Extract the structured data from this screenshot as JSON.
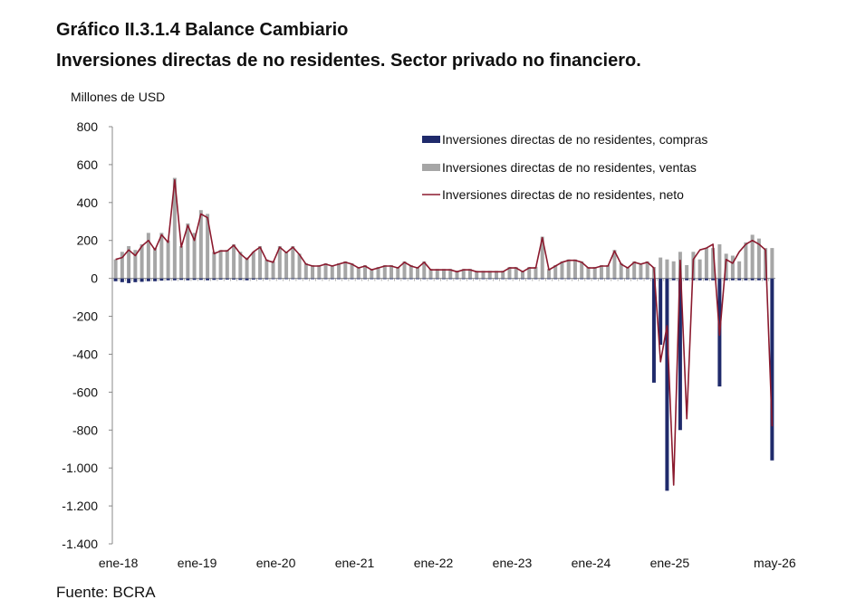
{
  "title": "Gráfico II.3.1.4 Balance Cambiario",
  "subtitle": "Inversiones directas de no residentes. Sector privado no financiero.",
  "source": "Fuente: BCRA",
  "colors": {
    "compras": "#1f2a6b",
    "ventas": "#a6a6a6",
    "neto": "#8b1a2e",
    "axis": "#888888"
  },
  "chart_data": {
    "type": "bar",
    "ylabel": "Millones de USD",
    "ylim": [
      -1400,
      800
    ],
    "yticks": [
      800,
      600,
      400,
      200,
      0,
      -200,
      -400,
      -600,
      -800,
      -1000,
      -1200,
      -1400
    ],
    "ytick_labels": [
      "800",
      "600",
      "400",
      "200",
      "0",
      "-200",
      "-400",
      "-600",
      "-800",
      "-1.000",
      "-1.200",
      "-1.400"
    ],
    "x_tick_labels": [
      "ene-18",
      "ene-19",
      "ene-20",
      "ene-21",
      "ene-22",
      "ene-23",
      "ene-24",
      "ene-25",
      "may-26"
    ],
    "x_tick_index": [
      0,
      12,
      24,
      36,
      48,
      60,
      72,
      84,
      100
    ],
    "legend_position": "top-right",
    "series": [
      {
        "name": "Inversiones directas de no residentes, compras",
        "kind": "bar",
        "values": [
          -15,
          -20,
          -25,
          -20,
          -18,
          -15,
          -15,
          -12,
          -10,
          -10,
          -8,
          -10,
          -8,
          -8,
          -10,
          -8,
          -6,
          -6,
          -6,
          -8,
          -10,
          -6,
          -5,
          -5,
          -4,
          -4,
          -4,
          -4,
          -4,
          -4,
          -4,
          -4,
          -4,
          -4,
          -4,
          -4,
          -4,
          -4,
          -4,
          -4,
          -4,
          -4,
          -4,
          -4,
          -4,
          -4,
          -4,
          -4,
          -4,
          -4,
          -4,
          -4,
          -4,
          -4,
          -4,
          -4,
          -4,
          -4,
          -4,
          -4,
          -4,
          -4,
          -4,
          -4,
          -4,
          -4,
          -4,
          -4,
          -4,
          -4,
          -4,
          -4,
          -4,
          -4,
          -4,
          -4,
          -4,
          -4,
          -4,
          -4,
          -4,
          -4,
          -550,
          -350,
          -1120,
          -10,
          -800,
          -10,
          -10,
          -10,
          -10,
          -10,
          -570,
          -10,
          -10,
          -10,
          -10,
          -10,
          -10,
          -10,
          -960
        ]
      },
      {
        "name": "Inversiones directas de no residentes, ventas",
        "kind": "bar",
        "values": [
          100,
          140,
          170,
          150,
          180,
          240,
          160,
          240,
          200,
          530,
          170,
          290,
          240,
          360,
          340,
          140,
          150,
          150,
          180,
          140,
          110,
          140,
          170,
          100,
          90,
          170,
          140,
          170,
          130,
          80,
          70,
          70,
          80,
          70,
          80,
          90,
          80,
          60,
          70,
          50,
          60,
          70,
          70,
          60,
          90,
          70,
          60,
          90,
          50,
          50,
          50,
          50,
          40,
          50,
          50,
          40,
          40,
          40,
          40,
          40,
          60,
          60,
          40,
          60,
          60,
          220,
          50,
          70,
          90,
          100,
          100,
          90,
          60,
          60,
          70,
          70,
          150,
          80,
          60,
          90,
          80,
          90,
          60,
          110,
          100,
          90,
          140,
          70,
          140,
          100,
          160,
          160,
          180,
          130,
          120,
          90,
          190,
          230,
          210,
          160,
          160
        ]
      },
      {
        "name": "Inversiones directas de no residentes, neto",
        "kind": "line",
        "values": [
          100,
          110,
          150,
          120,
          170,
          200,
          150,
          230,
          190,
          520,
          165,
          280,
          200,
          340,
          320,
          130,
          145,
          145,
          175,
          130,
          100,
          140,
          165,
          95,
          85,
          165,
          135,
          165,
          125,
          75,
          65,
          65,
          75,
          65,
          75,
          85,
          75,
          55,
          65,
          45,
          55,
          65,
          65,
          55,
          85,
          65,
          55,
          85,
          45,
          45,
          45,
          45,
          35,
          45,
          45,
          35,
          35,
          35,
          35,
          35,
          55,
          55,
          35,
          55,
          55,
          215,
          45,
          65,
          85,
          95,
          95,
          85,
          55,
          55,
          65,
          65,
          145,
          75,
          55,
          85,
          75,
          85,
          55,
          -440,
          -250,
          -1090,
          95,
          -740,
          100,
          150,
          160,
          180,
          -300,
          100,
          80,
          140,
          180,
          200,
          180,
          150,
          -780
        ]
      }
    ]
  }
}
